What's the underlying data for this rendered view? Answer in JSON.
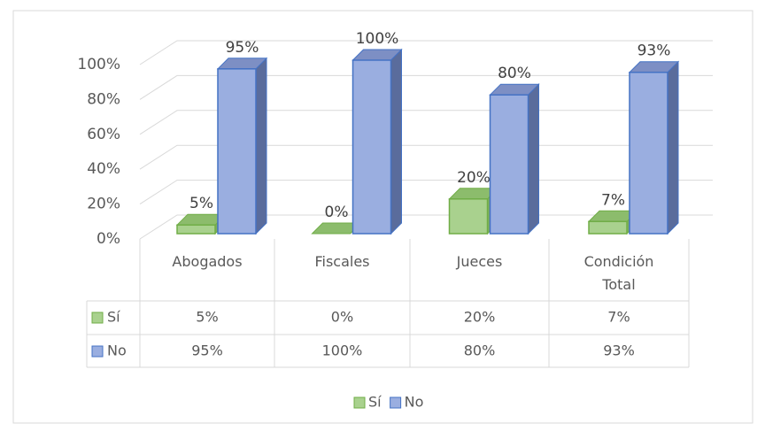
{
  "chart_data": {
    "type": "bar3d",
    "categories": [
      "Abogados",
      "Fiscales",
      "Jueces",
      "Condición Total"
    ],
    "series": [
      {
        "name": "Sí",
        "color": "#a9d18e",
        "values": [
          5,
          0,
          20,
          7
        ],
        "value_labels": [
          "5%",
          "0%",
          "20%",
          "7%"
        ]
      },
      {
        "name": "No",
        "color": "#9aaee0",
        "values": [
          95,
          100,
          80,
          93
        ],
        "value_labels": [
          "95%",
          "100%",
          "80%",
          "93%"
        ]
      }
    ],
    "ylim": [
      0,
      100
    ],
    "yticks": [
      {
        "value": 0,
        "label": "0%"
      },
      {
        "value": 20,
        "label": "20%"
      },
      {
        "value": 40,
        "label": "40%"
      },
      {
        "value": 60,
        "label": "60%"
      },
      {
        "value": 80,
        "label": "80%"
      },
      {
        "value": 100,
        "label": "100%"
      }
    ],
    "grid": true,
    "legend": "bottom"
  }
}
